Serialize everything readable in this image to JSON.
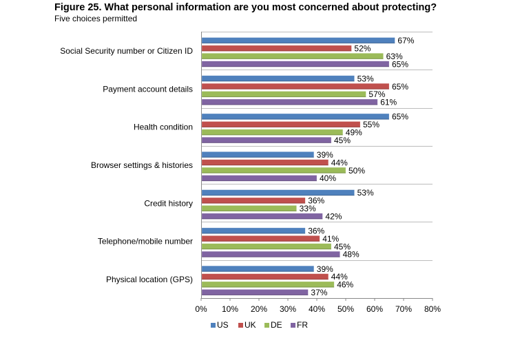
{
  "title": "Figure 25. What personal information are you most concerned about protecting?",
  "subtitle": "Five choices permitted",
  "colors": {
    "US": "#4f81bd",
    "UK": "#c0504d",
    "DE": "#9bbb59",
    "FR": "#8064a2"
  },
  "chart_data": {
    "type": "bar",
    "orientation": "horizontal",
    "title": "Figure 25. What personal information are you most concerned about protecting?",
    "subtitle": "Five choices permitted",
    "categories": [
      "Social Security number or Citizen ID",
      "Payment account details",
      "Health condition",
      "Browser settings & histories",
      "Credit history",
      "Telephone/mobile number",
      "Physical location (GPS)"
    ],
    "series": [
      {
        "name": "US",
        "values": [
          67,
          53,
          65,
          39,
          53,
          36,
          39
        ]
      },
      {
        "name": "UK",
        "values": [
          52,
          65,
          55,
          44,
          36,
          41,
          44
        ]
      },
      {
        "name": "DE",
        "values": [
          63,
          57,
          49,
          50,
          33,
          45,
          46
        ]
      },
      {
        "name": "FR",
        "values": [
          65,
          61,
          45,
          40,
          42,
          48,
          37
        ]
      }
    ],
    "value_suffix": "%",
    "xlim": [
      0,
      80
    ],
    "xticks": [
      "0%",
      "10%",
      "20%",
      "30%",
      "40%",
      "50%",
      "60%",
      "70%",
      "80%"
    ],
    "grid": "horizontal separators between categories",
    "legend": "bottom-center"
  }
}
